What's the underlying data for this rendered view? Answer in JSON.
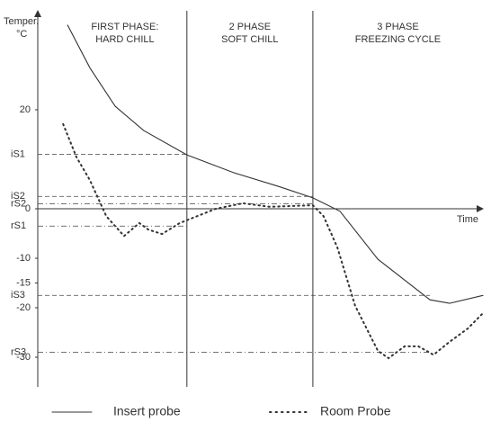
{
  "chart_data": {
    "type": "line",
    "y_label": [
      "Temper.",
      "°C"
    ],
    "x_label": "Time",
    "xlim": [
      0,
      100
    ],
    "ylim": [
      -36,
      40
    ],
    "yticks": [
      20,
      0,
      -10,
      -15,
      -20,
      -30
    ],
    "phase_bounds": [
      33.5,
      61.8
    ],
    "phases": [
      [
        "FIRST PHASE:",
        "HARD CHILL"
      ],
      [
        "2 PHASE",
        "SOFT CHILL"
      ],
      [
        "3 PHASE",
        "FREEZING CYCLE"
      ]
    ],
    "thresholds": [
      {
        "label": "iS1",
        "value": 11,
        "to": 33.5,
        "style": "dashed"
      },
      {
        "label": "iS2",
        "value": 2.5,
        "to": 61.8,
        "style": "dashed"
      },
      {
        "label": "rS2",
        "value": 1,
        "to": 61.8,
        "style": "dashdot"
      },
      {
        "label": "rS1",
        "value": -3.5,
        "to": 33.5,
        "style": "dashdot"
      },
      {
        "label": "iS3",
        "value": -17.5,
        "to": 88.1,
        "style": "dashed"
      },
      {
        "label": "rS3",
        "value": -29,
        "to": 88.1,
        "style": "dashdot"
      }
    ],
    "series": [
      {
        "name": "Insert probe",
        "color": "#333333",
        "dotted": false,
        "x": [
          6.7,
          11.7,
          17.4,
          23.8,
          33.5,
          44.0,
          54.1,
          61.8,
          67.9,
          76.4,
          88.1,
          92.5,
          100
        ],
        "values": [
          37.1,
          28.5,
          20.7,
          15.8,
          10.9,
          7.3,
          4.5,
          2.2,
          -0.5,
          -10.2,
          -18.4,
          -19.1,
          -17.5
        ]
      },
      {
        "name": "Room Probe",
        "color": "#333333",
        "dotted": true,
        "x": [
          5.7,
          8.7,
          11.7,
          15.4,
          19.4,
          22.8,
          24.8,
          27.9,
          31.9,
          40.0,
          46.1,
          52.1,
          61.8,
          64.2,
          67.3,
          71.3,
          76.4,
          78.8,
          82.4,
          85.5,
          88.9,
          92.5,
          96.6,
          100
        ],
        "values": [
          17.1,
          10.4,
          5.8,
          -1.5,
          -5.5,
          -2.9,
          -4.2,
          -5.1,
          -2.9,
          0,
          1.1,
          0.4,
          0.7,
          -1.5,
          -7.8,
          -19.6,
          -28.7,
          -30.2,
          -27.8,
          -27.8,
          -29.5,
          -26.9,
          -24.2,
          -21.1
        ]
      }
    ]
  }
}
